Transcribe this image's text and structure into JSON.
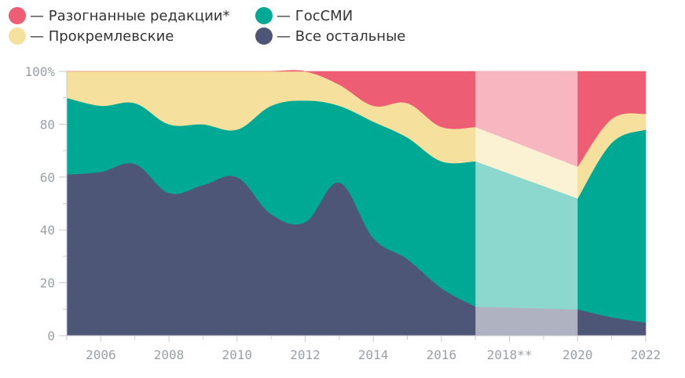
{
  "chart_data": {
    "type": "area",
    "stacked": true,
    "normalized": true,
    "x": [
      2005,
      2006,
      2007,
      2008,
      2009,
      2010,
      2011,
      2012,
      2013,
      2014,
      2015,
      2016,
      2017,
      2020,
      2021,
      2022
    ],
    "series": [
      {
        "name": "Все остальные",
        "color": "#4e5677",
        "values": [
          61,
          62,
          65,
          54,
          57,
          60,
          46,
          43,
          58,
          37,
          29,
          18,
          11,
          10,
          7,
          5
        ]
      },
      {
        "name": "ГосСМИ",
        "color": "#00a994",
        "values": [
          29,
          25,
          23,
          26,
          23,
          18,
          41,
          46,
          29,
          44,
          46,
          48,
          55,
          42,
          66,
          73
        ]
      },
      {
        "name": "Прокремлевские",
        "color": "#f5e09d",
        "values": [
          10,
          13,
          12,
          20,
          20,
          22,
          13,
          11,
          8,
          6,
          13,
          13,
          13,
          12,
          9,
          6
        ]
      },
      {
        "name": "Разогнанные редакции*",
        "color": "#ed5e74",
        "values": [
          0,
          0,
          0,
          0,
          0,
          0,
          0,
          0,
          5,
          13,
          12,
          21,
          21,
          36,
          18,
          16
        ]
      }
    ],
    "estimated_interval": [
      2017,
      2020
    ],
    "estimated_label": "2018**",
    "xticks": [
      2006,
      2008,
      2010,
      2012,
      2014,
      2016,
      2018,
      2020,
      2022
    ],
    "xtick_labels": [
      "2006",
      "2008",
      "2010",
      "2012",
      "2014",
      "2016",
      "2018**",
      "2020",
      "2022"
    ],
    "yticks": [
      0,
      20,
      40,
      60,
      80,
      100
    ],
    "ytick_labels": [
      "0",
      "20",
      "40",
      "60",
      "80",
      "100%"
    ],
    "xlim": [
      2005,
      2022
    ],
    "ylim": [
      0,
      100
    ],
    "legend_position": "top-left",
    "legend": [
      {
        "label": "— Разогнанные редакции*",
        "color": "#ed5e74"
      },
      {
        "label": "— Прокремлевские",
        "color": "#f5e09d"
      },
      {
        "label": "— ГосСМИ",
        "color": "#00a994"
      },
      {
        "label": "— Все остальные",
        "color": "#4e5677"
      }
    ]
  }
}
